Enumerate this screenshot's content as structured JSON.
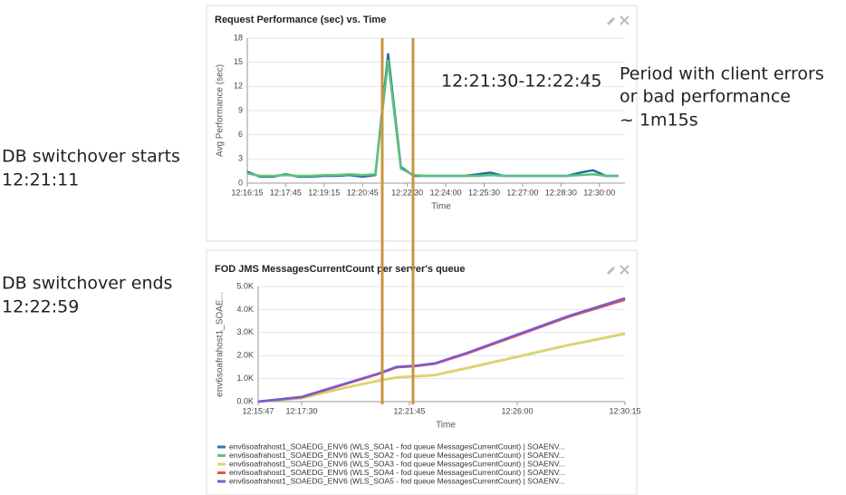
{
  "annotations": [
    "DB switchover starts",
    "12:21:11",
    "DB switchover ends",
    "12:22:59",
    "12:21:30-12:22:45",
    "Period with client errors",
    "or bad performance",
    "~ 1m15s"
  ],
  "chart_data": [
    {
      "type": "line",
      "title": "Request Performance (sec) vs. Time",
      "y_label": "Avg Performance (sec)",
      "x_label": "Time",
      "x": [
        "12:16:15",
        "12:16:45",
        "12:17:15",
        "12:17:45",
        "12:18:15",
        "12:18:45",
        "12:19:15",
        "12:19:45",
        "12:20:15",
        "12:20:45",
        "12:21:15",
        "12:21:45",
        "12:22:15",
        "12:22:45",
        "12:23:15",
        "12:23:45",
        "12:24:15",
        "12:24:45",
        "12:25:15",
        "12:25:45",
        "12:26:15",
        "12:26:45",
        "12:27:15",
        "12:27:45",
        "12:28:15",
        "12:28:45",
        "12:29:15",
        "12:29:45",
        "12:30:15",
        "12:30:45"
      ],
      "series": [
        {
          "color": "#1f6fa8",
          "values": [
            1.4,
            0.8,
            0.8,
            1.1,
            0.8,
            0.8,
            0.9,
            0.9,
            1.0,
            0.8,
            1.0,
            16.0,
            2.0,
            0.9,
            0.9,
            0.9,
            0.9,
            0.9,
            1.1,
            1.3,
            0.9,
            0.9,
            0.9,
            0.9,
            0.9,
            0.9,
            1.3,
            1.6,
            0.9,
            0.9
          ]
        },
        {
          "color": "#5cc27a",
          "values": [
            1.2,
            0.9,
            0.9,
            1.0,
            0.9,
            0.9,
            1.0,
            1.0,
            1.1,
            1.0,
            1.1,
            15.2,
            1.8,
            1.0,
            0.9,
            0.9,
            0.9,
            0.9,
            0.9,
            1.0,
            0.9,
            0.9,
            0.9,
            0.9,
            0.9,
            0.9,
            1.0,
            1.1,
            0.9,
            0.9
          ]
        }
      ],
      "xlim": [
        "12:16:15",
        "12:31:00"
      ],
      "xticks": [
        "12:16:15",
        "12:17:45",
        "12:19:15",
        "12:20:45",
        "12:22:30",
        "12:24:00",
        "12:25:30",
        "12:27:00",
        "12:28:30",
        "12:30:00"
      ],
      "ylim": [
        0,
        18
      ],
      "yticks": [
        0,
        3,
        6,
        9,
        12,
        15,
        18
      ],
      "grid": true
    },
    {
      "type": "line",
      "title": "FOD JMS MessagesCurrentCount per server's queue",
      "y_label": "env6soafrahost1_SOAE...",
      "x_label": "Time",
      "x": [
        "12:15:47",
        "12:17:30",
        "12:19:00",
        "12:20:30",
        "12:21:15",
        "12:22:00",
        "12:22:45",
        "12:24:00",
        "12:26:00",
        "12:28:00",
        "12:30:15"
      ],
      "series": [
        {
          "name": "env6soafrahost1_SOAEDG_ENV6 (WLS_SOA1 - fod queue MessagesCurrentCount) | SOAENV...",
          "color": "#2a78b5",
          "values": [
            0,
            200,
            700,
            1200,
            1500,
            1550,
            1650,
            2100,
            2900,
            3700,
            4480
          ]
        },
        {
          "name": "env6soafrahost1_SOAEDG_ENV6 (WLS_SOA2 - fod queue MessagesCurrentCount) | SOAENV...",
          "color": "#6cc26a",
          "values": [
            0,
            150,
            550,
            900,
            1050,
            1100,
            1150,
            1450,
            1950,
            2450,
            2950
          ]
        },
        {
          "name": "env6soafrahost1_SOAEDG_ENV6 (WLS_SOA3 - fod queue MessagesCurrentCount) | SOAENV...",
          "color": "#e6d36a",
          "values": [
            0,
            160,
            560,
            910,
            1060,
            1110,
            1160,
            1460,
            1960,
            2460,
            2960
          ]
        },
        {
          "name": "env6soafrahost1_SOAEDG_ENV6 (WLS_SOA4 - fod queue MessagesCurrentCount) | SOAENV...",
          "color": "#e8504a",
          "values": [
            0,
            190,
            690,
            1190,
            1490,
            1540,
            1640,
            2080,
            2870,
            3670,
            4420
          ]
        },
        {
          "name": "env6soafrahost1_SOAEDG_ENV6 (WLS_SOA5 - fod queue MessagesCurrentCount) | SOAENV...",
          "color": "#7a5bd1",
          "values": [
            0,
            210,
            710,
            1210,
            1510,
            1560,
            1660,
            2110,
            2910,
            3710,
            4490
          ]
        }
      ],
      "xlim": [
        "12:15:47",
        "12:30:15"
      ],
      "xticks": [
        "12:15:47",
        "12:17:30",
        "12:21:45",
        "12:26:00",
        "12:30:15"
      ],
      "ylim": [
        0,
        5000
      ],
      "yticks": [
        {
          "value": 0,
          "label": "0.0K"
        },
        {
          "value": 1000,
          "label": "1.0K"
        },
        {
          "value": 2000,
          "label": "2.0K"
        },
        {
          "value": 3000,
          "label": "3.0K"
        },
        {
          "value": 4000,
          "label": "4.0K"
        },
        {
          "value": 5000,
          "label": "5.0K"
        }
      ],
      "grid": true,
      "legend": "bottom"
    }
  ]
}
